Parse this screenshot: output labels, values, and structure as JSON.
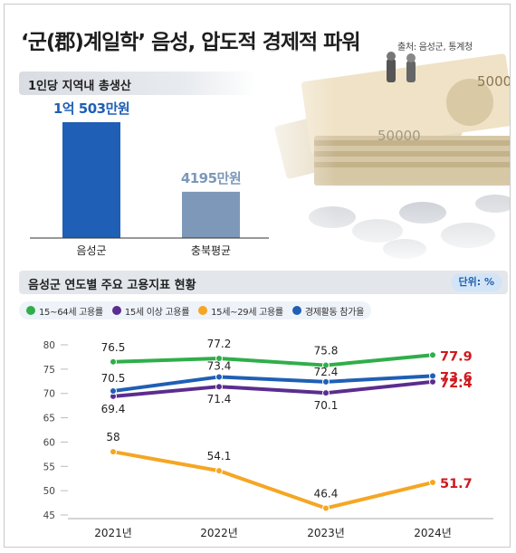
{
  "header": {
    "title": "‘군(郡)계일학’ 음성, 압도적 경제적 파워",
    "source": "출처: 음성군, 통계청"
  },
  "colors": {
    "bar_primary": "#1f5fb5",
    "bar_secondary": "#7d98b8",
    "green": "#2fae4a",
    "purple": "#5b2d8e",
    "orange": "#f5a623",
    "blue": "#1f5fb5",
    "highlight_red": "#d0191f"
  },
  "chart_data": [
    {
      "type": "bar",
      "title": "1인당 지역내 총생산",
      "categories": [
        "음성군",
        "충북평균"
      ],
      "values": [
        10503,
        4195
      ],
      "value_labels": [
        "1억 503만원",
        "4195만원"
      ]
    },
    {
      "type": "line",
      "title": "음성군 연도별 주요 고용지표 현황",
      "unit": "단위: %",
      "x": [
        "2021년",
        "2022년",
        "2023년",
        "2024년"
      ],
      "ylim": [
        45,
        80
      ],
      "yticks": [
        45,
        50,
        55,
        60,
        65,
        70,
        75,
        80
      ],
      "series": [
        {
          "name": "15~64세 고용률",
          "color": "#2fae4a",
          "values": [
            76.5,
            77.2,
            75.8,
            77.9
          ]
        },
        {
          "name": "15세 이상 고용률",
          "color": "#5b2d8e",
          "values": [
            69.4,
            71.4,
            70.1,
            72.4
          ]
        },
        {
          "name": "15세~29세 고용률",
          "color": "#f5a623",
          "values": [
            58,
            54.1,
            46.4,
            51.7
          ]
        },
        {
          "name": "경제활동 참가율",
          "color": "#1f5fb5",
          "values": [
            70.5,
            73.4,
            72.4,
            73.6
          ]
        }
      ]
    }
  ]
}
